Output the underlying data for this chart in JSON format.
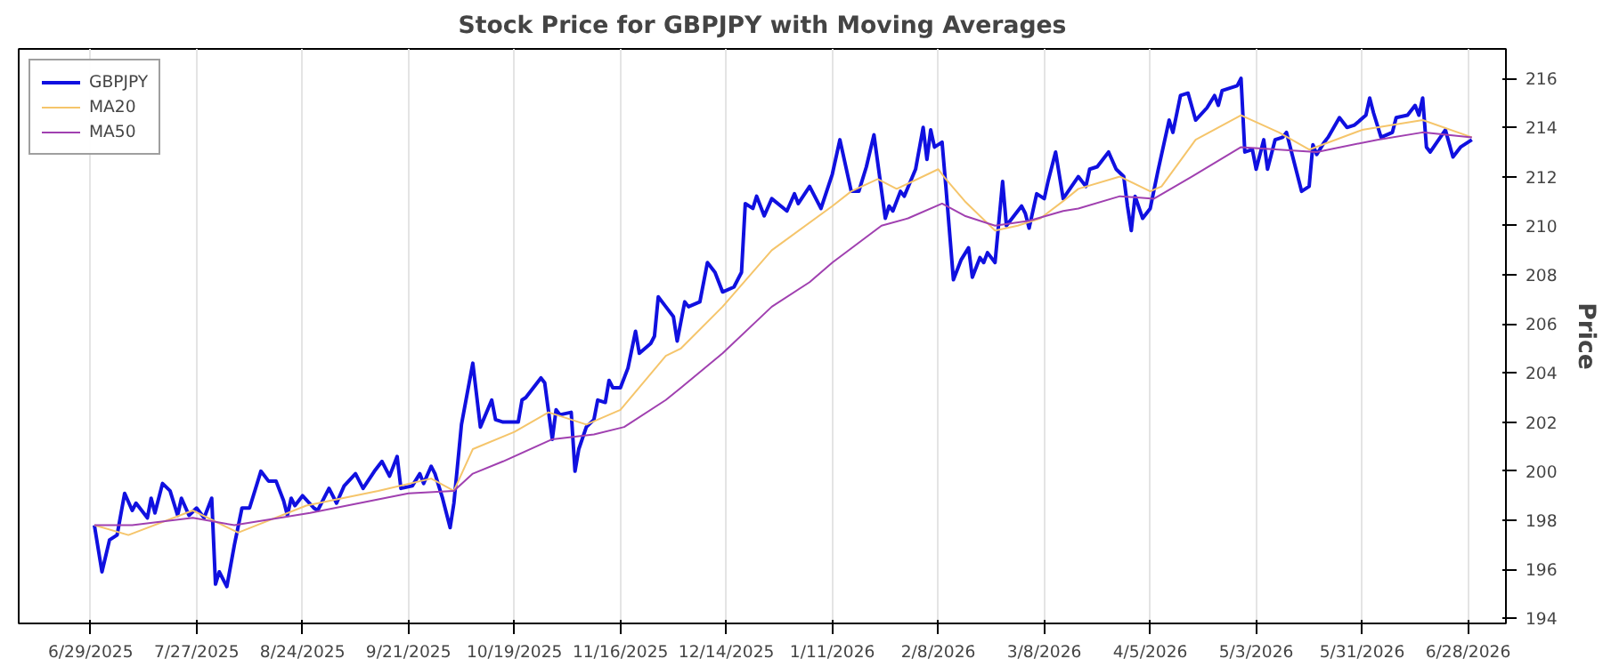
{
  "chart_data": {
    "type": "line",
    "title": "Stock Price for GBPJPY with Moving Averages",
    "ylabel": "Price",
    "xlim": [
      "2025-06-10",
      "2026-07-08"
    ],
    "ylim": [
      193.8,
      217.2
    ],
    "xticks": [
      {
        "value": "2025-06-29",
        "label": "6/29/2025"
      },
      {
        "value": "2025-07-27",
        "label": "7/27/2025"
      },
      {
        "value": "2025-08-24",
        "label": "8/24/2025"
      },
      {
        "value": "2025-09-21",
        "label": "9/21/2025"
      },
      {
        "value": "2025-10-19",
        "label": "10/19/2025"
      },
      {
        "value": "2025-11-16",
        "label": "11/16/2025"
      },
      {
        "value": "2025-12-14",
        "label": "12/14/2025"
      },
      {
        "value": "2026-01-11",
        "label": "1/11/2026"
      },
      {
        "value": "2026-02-08",
        "label": "2/8/2026"
      },
      {
        "value": "2026-03-08",
        "label": "3/8/2026"
      },
      {
        "value": "2026-04-05",
        "label": "4/5/2026"
      },
      {
        "value": "2026-05-03",
        "label": "5/3/2026"
      },
      {
        "value": "2026-05-31",
        "label": "5/31/2026"
      },
      {
        "value": "2026-06-28",
        "label": "6/28/2026"
      }
    ],
    "yticks": [
      194,
      196,
      198,
      200,
      202,
      204,
      206,
      208,
      210,
      212,
      214,
      216
    ],
    "grid": "x",
    "legend": "top left",
    "line_style": "solid",
    "series": [
      {
        "name": "GBPJPY",
        "color": "#1010e0",
        "x": [
          "2025-06-30",
          "2025-07-02",
          "2025-07-04",
          "2025-07-06",
          "2025-07-08",
          "2025-07-10",
          "2025-07-11",
          "2025-07-14",
          "2025-07-15",
          "2025-07-16",
          "2025-07-18",
          "2025-07-20",
          "2025-07-22",
          "2025-07-23",
          "2025-07-25",
          "2025-07-27",
          "2025-07-29",
          "2025-07-31",
          "2025-08-01",
          "2025-08-02",
          "2025-08-04",
          "2025-08-06",
          "2025-08-08",
          "2025-08-10",
          "2025-08-13",
          "2025-08-15",
          "2025-08-17",
          "2025-08-19",
          "2025-08-20",
          "2025-08-21",
          "2025-08-22",
          "2025-08-24",
          "2025-08-27",
          "2025-08-28",
          "2025-08-31",
          "2025-09-02",
          "2025-09-04",
          "2025-09-07",
          "2025-09-09",
          "2025-09-12",
          "2025-09-14",
          "2025-09-16",
          "2025-09-18",
          "2025-09-19",
          "2025-09-22",
          "2025-09-24",
          "2025-09-25",
          "2025-09-27",
          "2025-09-28",
          "2025-09-30",
          "2025-10-02",
          "2025-10-03",
          "2025-10-05",
          "2025-10-08",
          "2025-10-10",
          "2025-10-13",
          "2025-10-14",
          "2025-10-16",
          "2025-10-20",
          "2025-10-21",
          "2025-10-22",
          "2025-10-26",
          "2025-10-27",
          "2025-10-29",
          "2025-10-30",
          "2025-10-31",
          "2025-11-03",
          "2025-11-04",
          "2025-11-05",
          "2025-11-07",
          "2025-11-09",
          "2025-11-10",
          "2025-11-12",
          "2025-11-13",
          "2025-11-14",
          "2025-11-16",
          "2025-11-18",
          "2025-11-20",
          "2025-11-21",
          "2025-11-24",
          "2025-11-25",
          "2025-11-26",
          "2025-11-28",
          "2025-11-30",
          "2025-12-01",
          "2025-12-03",
          "2025-12-04",
          "2025-12-07",
          "2025-12-09",
          "2025-12-11",
          "2025-12-13",
          "2025-12-16",
          "2025-12-18",
          "2025-12-19",
          "2025-12-21",
          "2025-12-22",
          "2025-12-24",
          "2025-12-26",
          "2025-12-30",
          "2026-01-01",
          "2026-01-02",
          "2026-01-05",
          "2026-01-08",
          "2026-01-11",
          "2026-01-13",
          "2026-01-16",
          "2026-01-18",
          "2026-01-20",
          "2026-01-22",
          "2026-01-25",
          "2026-01-26",
          "2026-01-27",
          "2026-01-29",
          "2026-01-30",
          "2026-02-02",
          "2026-02-04",
          "2026-02-05",
          "2026-02-06",
          "2026-02-07",
          "2026-02-09",
          "2026-02-10",
          "2026-02-12",
          "2026-02-14",
          "2026-02-16",
          "2026-02-17",
          "2026-02-19",
          "2026-02-20",
          "2026-02-21",
          "2026-02-23",
          "2026-02-25",
          "2026-02-26",
          "2026-03-02",
          "2026-03-03",
          "2026-03-04",
          "2026-03-06",
          "2026-03-08",
          "2026-03-09",
          "2026-03-11",
          "2026-03-13",
          "2026-03-17",
          "2026-03-19",
          "2026-03-20",
          "2026-03-22",
          "2026-03-25",
          "2026-03-27",
          "2026-03-29",
          "2026-03-30",
          "2026-03-31",
          "2026-04-01",
          "2026-04-03",
          "2026-04-05",
          "2026-04-07",
          "2026-04-10",
          "2026-04-11",
          "2026-04-13",
          "2026-04-15",
          "2026-04-17",
          "2026-04-20",
          "2026-04-22",
          "2026-04-23",
          "2026-04-24",
          "2026-04-28",
          "2026-04-29",
          "2026-04-30",
          "2026-05-02",
          "2026-05-03",
          "2026-05-05",
          "2026-05-06",
          "2026-05-08",
          "2026-05-10",
          "2026-05-11",
          "2026-05-15",
          "2026-05-17",
          "2026-05-18",
          "2026-05-19",
          "2026-05-21",
          "2026-05-22",
          "2026-05-25",
          "2026-05-27",
          "2026-05-29",
          "2026-06-01",
          "2026-06-02",
          "2026-06-03",
          "2026-06-05",
          "2026-06-08",
          "2026-06-09",
          "2026-06-12",
          "2026-06-14",
          "2026-06-15",
          "2026-06-16",
          "2026-06-17",
          "2026-06-18",
          "2026-06-22",
          "2026-06-24",
          "2026-06-26",
          "2026-06-29"
        ],
        "values": [
          197.8,
          195.9,
          197.2,
          197.4,
          199.1,
          198.4,
          198.7,
          198.1,
          198.9,
          198.3,
          199.5,
          199.2,
          198.2,
          198.9,
          198.2,
          198.5,
          198.1,
          198.9,
          195.4,
          195.9,
          195.3,
          197.0,
          198.5,
          198.5,
          200.0,
          199.6,
          199.6,
          198.8,
          198.2,
          198.9,
          198.6,
          199.0,
          198.5,
          198.4,
          199.3,
          198.7,
          199.4,
          199.9,
          199.3,
          200.0,
          200.4,
          199.8,
          200.6,
          199.3,
          199.4,
          199.9,
          199.5,
          200.2,
          199.9,
          198.9,
          197.7,
          198.7,
          201.9,
          204.4,
          201.8,
          202.9,
          202.1,
          202.0,
          202.0,
          202.9,
          203.0,
          203.8,
          203.6,
          201.3,
          202.5,
          202.3,
          202.4,
          200.0,
          200.9,
          201.8,
          202.1,
          202.9,
          202.8,
          203.7,
          203.4,
          203.4,
          204.2,
          205.7,
          204.8,
          205.2,
          205.5,
          207.1,
          206.7,
          206.3,
          205.3,
          206.9,
          206.7,
          206.9,
          208.5,
          208.1,
          207.3,
          207.5,
          208.1,
          210.9,
          210.7,
          211.2,
          210.4,
          211.1,
          210.6,
          211.3,
          210.9,
          211.6,
          210.7,
          212.1,
          213.5,
          211.4,
          211.4,
          212.4,
          213.7,
          210.3,
          210.8,
          210.6,
          211.4,
          211.2,
          212.3,
          214.0,
          212.7,
          213.9,
          213.2,
          213.4,
          211.6,
          207.8,
          208.6,
          209.1,
          207.9,
          208.7,
          208.5,
          208.9,
          208.5,
          211.8,
          210.0,
          210.8,
          210.5,
          209.9,
          211.3,
          211.1,
          211.8,
          213.0,
          211.1,
          212.0,
          211.6,
          212.3,
          212.4,
          213.0,
          212.3,
          212.0,
          210.8,
          209.8,
          211.2,
          210.3,
          210.7,
          212.2,
          214.3,
          213.8,
          215.3,
          215.4,
          214.3,
          214.8,
          215.3,
          214.9,
          215.5,
          215.7,
          216.0,
          213.0,
          213.1,
          212.3,
          213.5,
          212.3,
          213.5,
          213.6,
          213.8,
          211.4,
          211.6,
          213.3,
          212.9,
          213.4,
          213.6,
          214.4,
          214.0,
          214.1,
          214.5,
          215.2,
          214.6,
          213.6,
          213.8,
          214.4,
          214.5,
          214.9,
          214.5,
          215.2,
          213.2,
          213.0,
          213.9,
          212.8,
          213.2,
          213.5
        ]
      },
      {
        "name": "MA20",
        "color": "#f5c56b",
        "x": [
          "2025-06-30",
          "2025-07-09",
          "2025-07-26",
          "2025-08-07",
          "2025-08-25",
          "2025-09-13",
          "2025-09-27",
          "2025-10-03",
          "2025-10-08",
          "2025-10-19",
          "2025-10-28",
          "2025-11-07",
          "2025-11-16",
          "2025-11-28",
          "2025-12-02",
          "2025-12-13",
          "2025-12-26",
          "2026-01-11",
          "2026-01-16",
          "2026-01-23",
          "2026-01-28",
          "2026-02-08",
          "2026-02-10",
          "2026-02-15",
          "2026-02-23",
          "2026-03-01",
          "2026-03-07",
          "2026-03-13",
          "2026-03-17",
          "2026-03-28",
          "2026-04-05",
          "2026-04-08",
          "2026-04-17",
          "2026-04-29",
          "2026-05-09",
          "2026-05-17",
          "2026-05-31",
          "2026-06-16",
          "2026-06-29"
        ],
        "values": [
          197.8,
          197.4,
          198.4,
          197.5,
          198.6,
          199.2,
          199.7,
          199.2,
          200.9,
          201.6,
          202.4,
          201.9,
          202.5,
          204.7,
          205.0,
          206.7,
          209.0,
          210.8,
          211.4,
          211.9,
          211.5,
          212.3,
          211.9,
          211.0,
          209.8,
          210.0,
          210.3,
          211.0,
          211.5,
          212.0,
          211.4,
          211.6,
          213.5,
          214.5,
          213.8,
          213.1,
          213.9,
          214.3,
          213.6
        ]
      },
      {
        "name": "MA50",
        "color": "#a040b0",
        "x": [
          "2025-06-30",
          "2025-07-10",
          "2025-07-26",
          "2025-08-06",
          "2025-08-26",
          "2025-09-21",
          "2025-10-03",
          "2025-10-08",
          "2025-10-16",
          "2025-10-29",
          "2025-11-09",
          "2025-11-17",
          "2025-11-28",
          "2025-12-02",
          "2025-12-13",
          "2025-12-26",
          "2026-01-05",
          "2026-01-11",
          "2026-01-24",
          "2026-01-31",
          "2026-02-09",
          "2026-02-15",
          "2026-02-23",
          "2026-03-04",
          "2026-03-13",
          "2026-03-17",
          "2026-03-28",
          "2026-04-06",
          "2026-04-16",
          "2026-04-29",
          "2026-05-09",
          "2026-05-19",
          "2026-06-04",
          "2026-06-16",
          "2026-06-29"
        ],
        "values": [
          197.8,
          197.8,
          198.1,
          197.8,
          198.3,
          199.1,
          199.2,
          199.9,
          200.4,
          201.3,
          201.5,
          201.8,
          202.9,
          203.4,
          204.8,
          206.7,
          207.7,
          208.5,
          210.0,
          210.3,
          210.9,
          210.4,
          210.0,
          210.2,
          210.6,
          210.7,
          211.2,
          211.1,
          212.0,
          213.2,
          213.1,
          213.0,
          213.5,
          213.8,
          213.6
        ]
      }
    ]
  }
}
